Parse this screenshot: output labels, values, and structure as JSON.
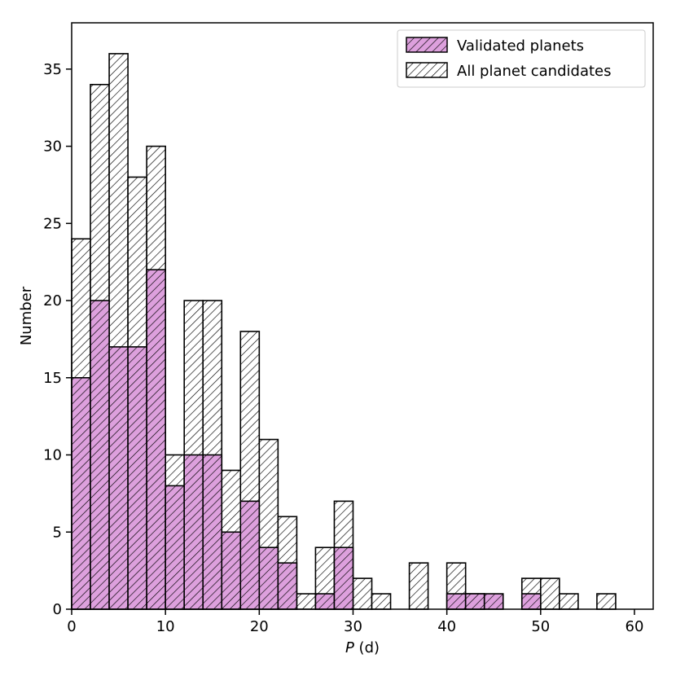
{
  "chart_data": {
    "type": "bar",
    "title": "",
    "xlabel_var": "P",
    "xlabel_unit": " (d)",
    "ylabel": "Number",
    "xlim": [
      0,
      62
    ],
    "ylim": [
      0,
      38
    ],
    "xticks": [
      0,
      10,
      20,
      30,
      40,
      50,
      60
    ],
    "yticks": [
      0,
      5,
      10,
      15,
      20,
      25,
      30,
      35
    ],
    "bin_width": 2,
    "bin_starts": [
      0,
      2,
      4,
      6,
      8,
      10,
      12,
      14,
      16,
      18,
      20,
      22,
      24,
      26,
      28,
      30,
      32,
      34,
      36,
      38,
      40,
      42,
      44,
      46,
      48,
      50,
      52,
      54,
      56,
      58
    ],
    "series": [
      {
        "name": "Validated planets",
        "color": "#dda0dd",
        "hatch": true,
        "values": [
          15,
          20,
          17,
          17,
          22,
          8,
          10,
          10,
          5,
          7,
          4,
          3,
          0,
          1,
          4,
          0,
          0,
          0,
          0,
          0,
          1,
          1,
          1,
          0,
          1,
          0,
          0,
          0,
          0,
          0
        ]
      },
      {
        "name": "All planet candidates",
        "color": "#ffffff",
        "hatch": true,
        "values": [
          24,
          34,
          36,
          28,
          30,
          10,
          20,
          20,
          9,
          18,
          11,
          6,
          1,
          4,
          7,
          2,
          1,
          0,
          3,
          0,
          3,
          1,
          0,
          0,
          2,
          2,
          1,
          0,
          1,
          0
        ]
      }
    ],
    "legend_position": "top-right"
  }
}
